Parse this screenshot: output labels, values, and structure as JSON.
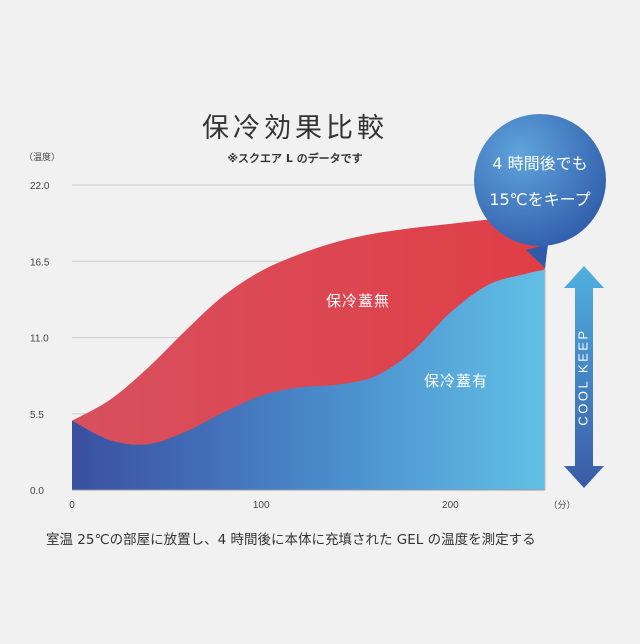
{
  "title": "保冷効果比較",
  "subtitle": "※スクエア L のデータです",
  "note": "室温 25℃の部屋に放置し、4 時間後に本体に充填された GEL の温度を測定する",
  "callout": {
    "line1": "4 時間後でも",
    "line2": "15℃をキープ"
  },
  "cool_keep": "COOL KEEP",
  "colors": {
    "without_lid": "#db4a55",
    "with_lid_dark": "#3a5aa6",
    "with_lid_light": "#5db8e0",
    "bubble": "#3f6fb6",
    "arrow": "#4a8fd0"
  },
  "chart_data": {
    "type": "area",
    "ylabel": "（温度）",
    "xunit": "（分）",
    "xlim": [
      0,
      250
    ],
    "ylim": [
      0,
      22
    ],
    "yticks": [
      "0.0",
      "5.5",
      "11.0",
      "16.5",
      "22.0"
    ],
    "xticks": [
      "0",
      "100",
      "200"
    ],
    "grid": true,
    "x": [
      0,
      20,
      40,
      60,
      80,
      100,
      120,
      140,
      160,
      180,
      200,
      220,
      240,
      250
    ],
    "series": [
      {
        "name": "保冷蓋無",
        "values": [
          5.0,
          6.5,
          8.8,
          11.5,
          14.0,
          15.8,
          17.0,
          17.9,
          18.5,
          18.9,
          19.2,
          19.5,
          19.7,
          19.8
        ]
      },
      {
        "name": "保冷蓋有",
        "values": [
          5.0,
          3.6,
          3.3,
          4.2,
          5.6,
          6.8,
          7.4,
          7.6,
          8.2,
          10.0,
          12.8,
          14.8,
          15.6,
          15.9
        ]
      }
    ]
  }
}
